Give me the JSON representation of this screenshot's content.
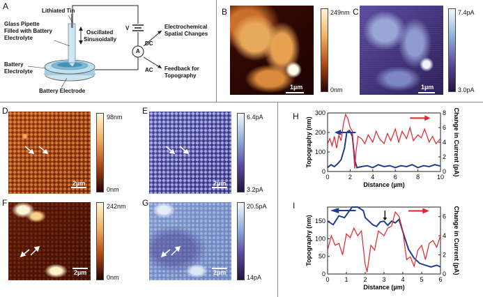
{
  "panels": {
    "A": "A",
    "B": "B",
    "C": "C",
    "D": "D",
    "E": "E",
    "F": "F",
    "G": "G",
    "H": "H",
    "I": "I"
  },
  "schematic": {
    "lithiated_tin": "Lithiated Tin",
    "pipette_line1": "Glass Pipette",
    "pipette_line2": "Filled with Battery",
    "pipette_line3": "Electrolyte",
    "oscillated_line1": "Oscillated",
    "oscillated_line2": "Sinusoidally",
    "battery_electrolyte_line1": "Battery",
    "battery_electrolyte_line2": "Electrolyte",
    "battery_electrode": "Battery Electrode",
    "v": "V",
    "a": "A",
    "dc": "DC",
    "ac": "AC",
    "electrochem_line1": "Electrochemical",
    "electrochem_line2": "Spatial Changes",
    "feedback_line1": "Feedback for",
    "feedback_line2": "Topography"
  },
  "images": {
    "B": {
      "cbar_max": "249nm",
      "cbar_min": "0nm",
      "scale": "1µm"
    },
    "C": {
      "cbar_max": "7.4pA",
      "cbar_min": "3.0pA",
      "scale": "1µm"
    },
    "D": {
      "cbar_max": "98nm",
      "cbar_min": "0nm",
      "scale": "2µm"
    },
    "E": {
      "cbar_max": "6.4pA",
      "cbar_min": "3.2pA",
      "scale": "2µm"
    },
    "F": {
      "cbar_max": "242nm",
      "cbar_min": "0nm",
      "scale": "2µm"
    },
    "G": {
      "cbar_max": "20.5pA",
      "cbar_min": "14pA",
      "scale": "2µm"
    }
  },
  "chart_data": [
    {
      "panel": "H",
      "type": "line",
      "xlabel": "Distance (µm)",
      "ylabel": "Topography (nm)",
      "y2label": "Change in Current (pA)",
      "xlim": [
        0,
        10
      ],
      "ylim": [
        0,
        300
      ],
      "y2lim": [
        0,
        8
      ],
      "xticks": [
        "0",
        "2",
        "4",
        "6",
        "8",
        "10"
      ],
      "yticks": [
        "0",
        "100",
        "200",
        "300"
      ],
      "y2ticks": [
        "0",
        "2",
        "4",
        "6",
        "8"
      ],
      "series": [
        {
          "axis": "left",
          "color": "#1f3c8f",
          "x": [
            0,
            0.3,
            0.6,
            0.9,
            1.2,
            1.5,
            1.7,
            1.9,
            2.0,
            2.2,
            2.4,
            2.6,
            3.0,
            3.5,
            4.0,
            4.5,
            5.0,
            5.5,
            6.0,
            6.5,
            7.0,
            7.5,
            8.0,
            8.5,
            9.0,
            9.5,
            10
          ],
          "y": [
            20,
            35,
            25,
            40,
            60,
            120,
            200,
            210,
            205,
            180,
            60,
            20,
            25,
            30,
            20,
            35,
            25,
            30,
            20,
            30,
            25,
            35,
            20,
            30,
            25,
            35,
            28
          ]
        },
        {
          "axis": "right",
          "color": "#e8202a",
          "x": [
            0,
            0.2,
            0.4,
            0.6,
            0.8,
            1.0,
            1.2,
            1.4,
            1.6,
            1.8,
            2.0,
            2.2,
            2.4,
            2.5,
            2.7,
            3.0,
            3.3,
            3.6,
            4.0,
            4.3,
            4.6,
            5.0,
            5.3,
            5.6,
            6.0,
            6.3,
            6.6,
            7.0,
            7.3,
            7.6,
            8.0,
            8.3,
            8.6,
            9.0,
            9.3,
            9.6,
            10
          ],
          "y": [
            3.8,
            4.5,
            3.5,
            4.8,
            3.2,
            5.0,
            4.2,
            6.5,
            7.8,
            7.2,
            6.0,
            5.5,
            0.4,
            2.5,
            4.8,
            4.5,
            3.8,
            5.0,
            4.0,
            5.5,
            4.5,
            3.8,
            5.2,
            4.2,
            5.8,
            4.0,
            5.5,
            4.5,
            6.0,
            4.2,
            5.0,
            4.6,
            5.8,
            4.0,
            4.8,
            3.8,
            4.5
          ]
        }
      ]
    },
    {
      "panel": "I",
      "type": "line",
      "xlabel": "Distance (µm)",
      "ylabel": "Topography (nm)",
      "y2label": "Change in Current (pA)",
      "xlim": [
        0,
        6
      ],
      "ylim": [
        0,
        190
      ],
      "y2lim": [
        0,
        7
      ],
      "xticks": [
        "0",
        "1",
        "2",
        "3",
        "4",
        "5",
        "6"
      ],
      "yticks": [
        "0",
        "50",
        "100",
        "150"
      ],
      "y2ticks": [
        "0",
        "2",
        "4",
        "6"
      ],
      "series": [
        {
          "axis": "left",
          "color": "#1f3c8f",
          "x": [
            0,
            0.3,
            0.6,
            0.9,
            1.1,
            1.3,
            1.6,
            1.9,
            2.0,
            2.2,
            2.4,
            2.6,
            2.8,
            3.0,
            3.2,
            3.4,
            3.6,
            3.8,
            4.0,
            4.3,
            4.6,
            4.9,
            5.2,
            5.5,
            5.8,
            6.0
          ],
          "y": [
            150,
            140,
            165,
            160,
            175,
            190,
            190,
            180,
            160,
            150,
            140,
            135,
            148,
            150,
            138,
            150,
            145,
            155,
            120,
            70,
            45,
            30,
            25,
            20,
            25,
            20
          ]
        },
        {
          "axis": "right",
          "color": "#e8202a",
          "x": [
            0,
            0.2,
            0.4,
            0.6,
            0.8,
            1.0,
            1.2,
            1.4,
            1.6,
            1.8,
            2.0,
            2.1,
            2.3,
            2.5,
            2.7,
            3.0,
            3.2,
            3.4,
            3.6,
            3.8,
            4.0,
            4.2,
            4.4,
            4.6,
            4.8,
            5.0,
            5.2,
            5.4,
            5.6,
            5.8,
            6.0
          ],
          "y": [
            2.5,
            4.0,
            3.0,
            3.2,
            2.0,
            4.2,
            3.8,
            4.8,
            4.0,
            4.5,
            1.0,
            0.2,
            3.0,
            2.5,
            4.5,
            4.0,
            4.8,
            5.0,
            6.5,
            6.0,
            4.5,
            1.5,
            1.8,
            0.8,
            2.5,
            3.0,
            1.5,
            3.2,
            3.5,
            2.8,
            4.0
          ]
        }
      ]
    }
  ]
}
